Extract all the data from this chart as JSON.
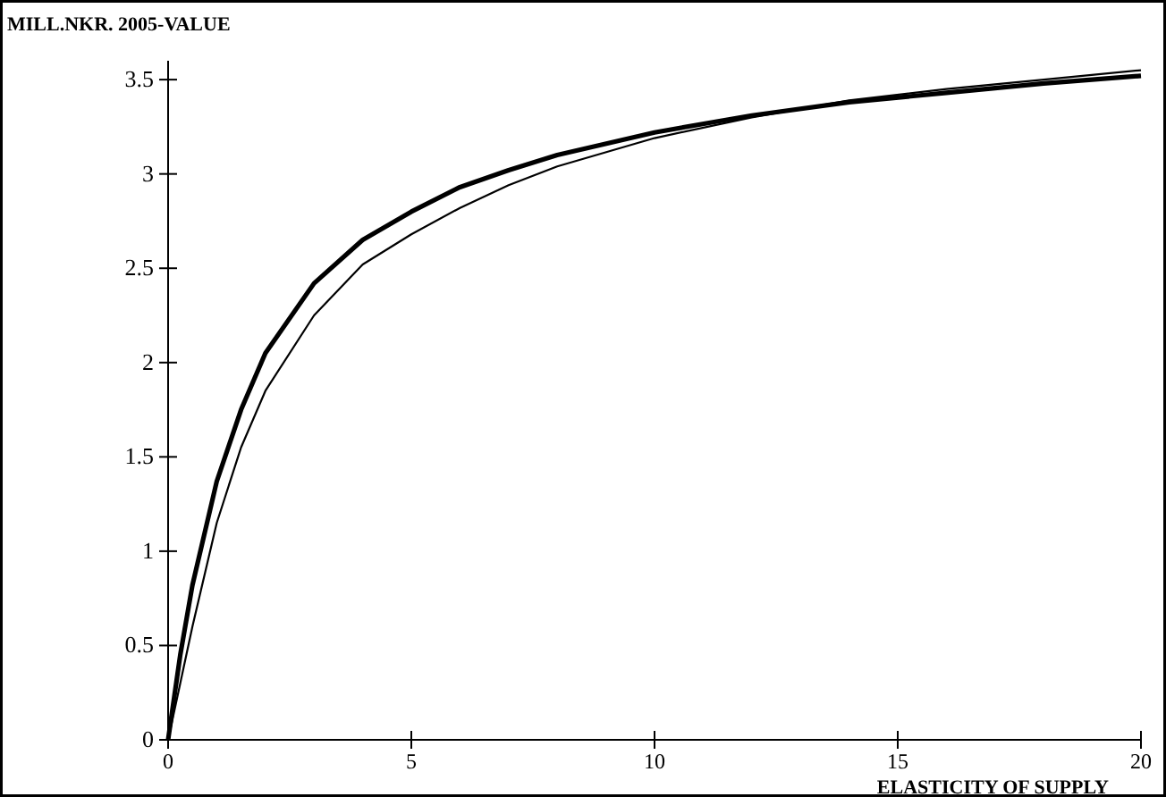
{
  "chart_data": {
    "type": "line",
    "xlabel": "ELASTICITY OF SUPPLY",
    "ylabel": "MILL.NKR. 2005-VALUE",
    "x": [
      0,
      0.25,
      0.5,
      1,
      1.5,
      2,
      3,
      4,
      5,
      6,
      7,
      8,
      10,
      12,
      14,
      16,
      18,
      20
    ],
    "series": [
      {
        "color": "#000000",
        "values": [
          0,
          0.45,
          0.82,
          1.37,
          1.75,
          2.05,
          2.42,
          2.65,
          2.8,
          2.93,
          3.02,
          3.1,
          3.22,
          3.31,
          3.38,
          3.43,
          3.48,
          3.52
        ]
      },
      {
        "color": "#000000",
        "values": [
          0,
          0.3,
          0.6,
          1.15,
          1.55,
          1.85,
          2.25,
          2.52,
          2.68,
          2.82,
          2.94,
          3.04,
          3.19,
          3.3,
          3.39,
          3.45,
          3.5,
          3.55
        ]
      }
    ],
    "xlim": [
      0,
      20
    ],
    "xticks": [
      0,
      5,
      10,
      15,
      20
    ],
    "ylim": [
      0,
      3.6
    ],
    "yticks": [
      0,
      0.5,
      1,
      1.5,
      2,
      2.5,
      3,
      3.5
    ],
    "grid": false,
    "marker": "none",
    "line_style": "solid"
  }
}
